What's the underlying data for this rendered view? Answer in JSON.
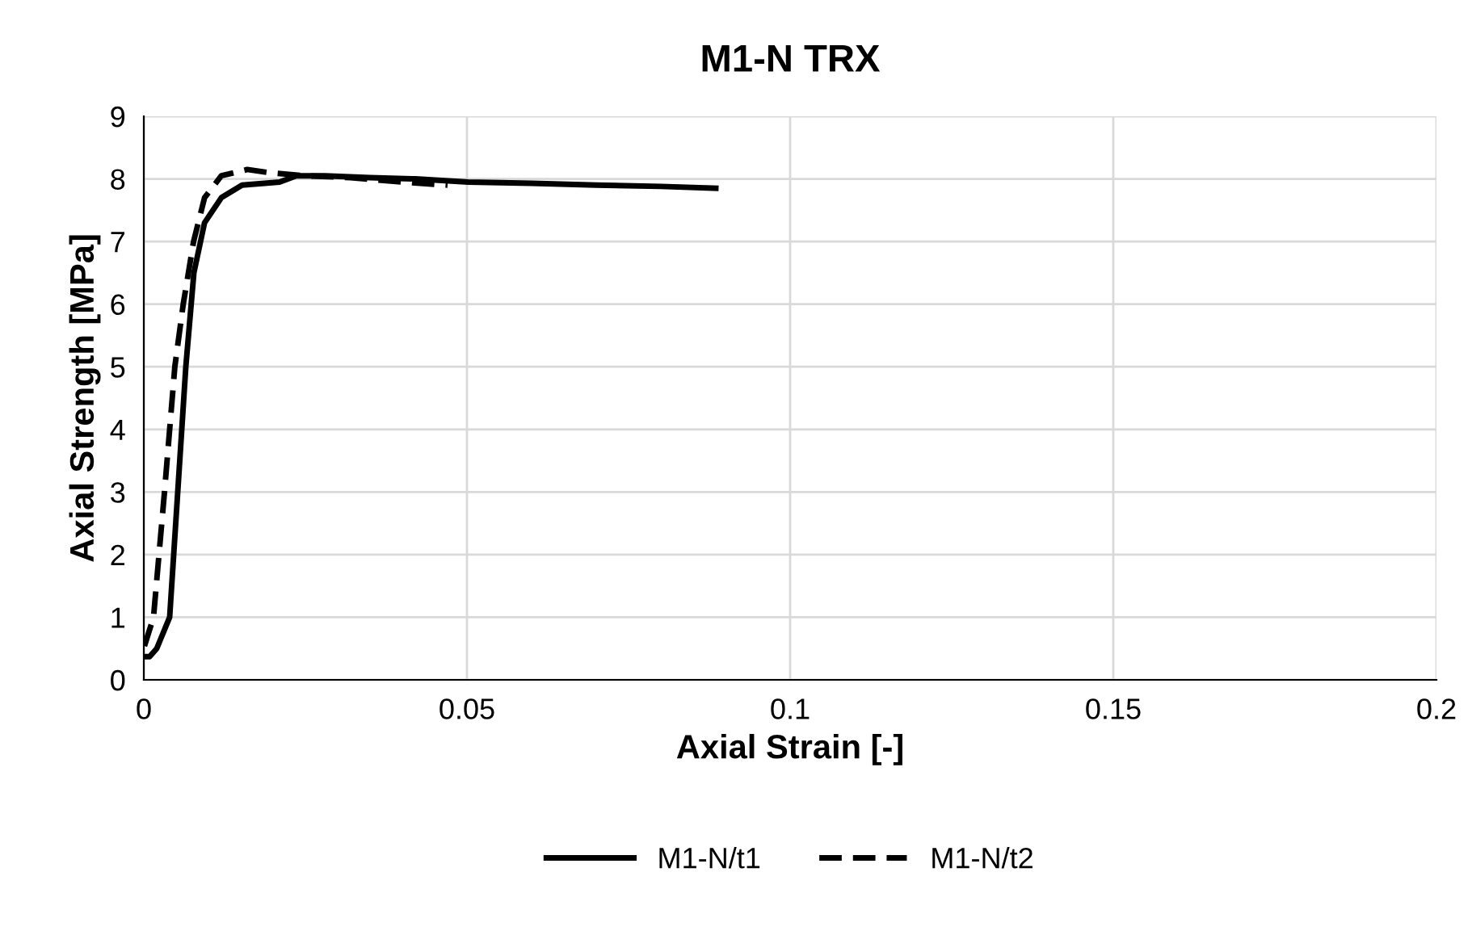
{
  "chart_data": {
    "type": "line",
    "title": "M1-N TRX",
    "xlabel": "Axial Strain [-]",
    "ylabel": "Axial Strength [MPa]",
    "xlim": [
      0,
      0.2
    ],
    "xticks": [
      0,
      0.05,
      0.1,
      0.15,
      0.2
    ],
    "ylim": [
      0,
      9
    ],
    "yticks": [
      0,
      1,
      2,
      3,
      4,
      5,
      6,
      7,
      8,
      9
    ],
    "grid": true,
    "legend": "bottom",
    "marker": "none",
    "series": [
      {
        "name": "M1-N/t1",
        "color": "#000000",
        "line_style": "solid",
        "x": [
          0.0001,
          0.0009,
          0.002,
          0.004,
          0.00525,
          0.0065,
          0.00775,
          0.0094,
          0.012,
          0.0152,
          0.021,
          0.0236,
          0.028,
          0.035,
          0.042,
          0.0502,
          0.06,
          0.07,
          0.08,
          0.0885
        ],
        "values": [
          0.37,
          0.37,
          0.5,
          1,
          3,
          5,
          6.5,
          7.3,
          7.7,
          7.9,
          7.95,
          8.05,
          8.05,
          8.02,
          8.0,
          7.95,
          7.93,
          7.9,
          7.88,
          7.85
        ]
      },
      {
        "name": "M1-N/t2",
        "color": "#000000",
        "line_style": "dashed",
        "x": [
          0.0001,
          0.0015,
          0.0032,
          0.0048,
          0.0061,
          0.0077,
          0.0094,
          0.012,
          0.016,
          0.0194,
          0.025,
          0.032,
          0.04,
          0.047
        ],
        "values": [
          0.54,
          1,
          3,
          5,
          6,
          7,
          7.7,
          8.05,
          8.15,
          8.1,
          8.05,
          8.02,
          7.95,
          7.9
        ]
      }
    ]
  }
}
